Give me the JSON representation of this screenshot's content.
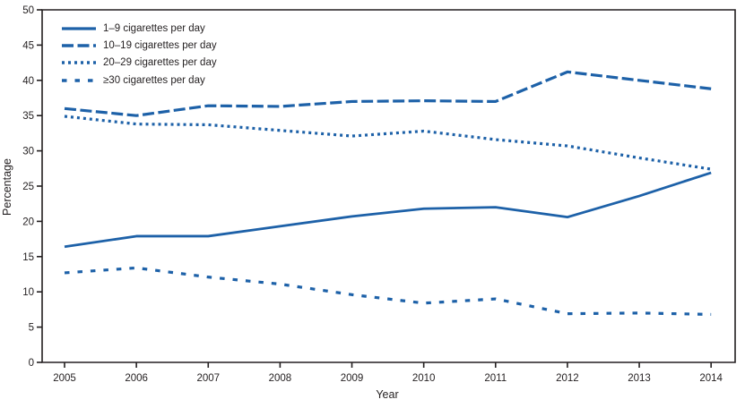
{
  "figure": {
    "background": "#ffffff"
  },
  "chart_data": {
    "type": "line",
    "title": "",
    "xlabel": "Year",
    "ylabel": "Percentage",
    "x": [
      2005,
      2006,
      2007,
      2008,
      2009,
      2010,
      2011,
      2012,
      2013,
      2014
    ],
    "ylim": [
      0,
      50
    ],
    "ytick_step": 5,
    "grid": false,
    "legend_position": "top-left-inside",
    "line_color": "#1d61a8",
    "axis_color": "#231f20",
    "series": [
      {
        "name": "1–9 cigarettes per day",
        "style": "solid",
        "values": [
          16.4,
          17.9,
          17.9,
          19.3,
          20.7,
          21.8,
          22.0,
          20.6,
          23.6,
          26.9
        ]
      },
      {
        "name": "10–19 cigarettes per day",
        "style": "dash",
        "values": [
          36.0,
          35.0,
          36.4,
          36.3,
          37.0,
          37.1,
          37.0,
          41.2,
          40.0,
          38.8
        ]
      },
      {
        "name": "20–29 cigarettes per day",
        "style": "dot",
        "values": [
          34.9,
          33.8,
          33.7,
          32.9,
          32.1,
          32.8,
          31.6,
          30.7,
          29.0,
          27.4
        ]
      },
      {
        "name": "≥30 cigarettes per day",
        "style": "sparse-dash",
        "values": [
          12.7,
          13.4,
          12.1,
          11.1,
          9.6,
          8.4,
          9.0,
          6.9,
          7.0,
          6.8
        ]
      }
    ]
  }
}
